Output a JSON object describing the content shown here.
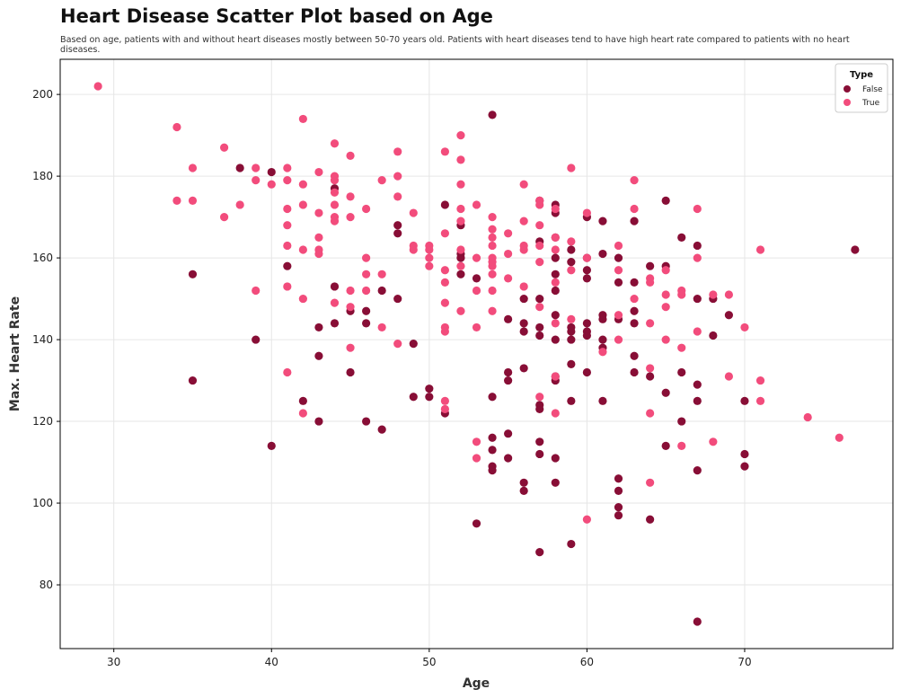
{
  "chart_data": {
    "type": "scatter",
    "title": "Heart Disease Scatter Plot based on Age",
    "subtitle": "Based on age, patients with and without heart diseases mostly between 50-70 years old. Patients with heart diseases tend to have high heart rate compared to patients with no heart diseases.",
    "xlabel": "Age",
    "ylabel": "Max. Heart Rate",
    "xlim": [
      26.6,
      79.4
    ],
    "ylim": [
      64.4,
      208.6
    ],
    "xticks": [
      30,
      40,
      50,
      60,
      70
    ],
    "yticks": [
      80,
      100,
      120,
      140,
      160,
      180,
      200
    ],
    "grid": true,
    "legend": {
      "title": "Type",
      "placement": "top-right"
    },
    "series": [
      {
        "name": "False",
        "color": "#880e36",
        "points": [
          [
            35,
            156
          ],
          [
            35,
            130
          ],
          [
            38,
            182
          ],
          [
            39,
            140
          ],
          [
            40,
            181
          ],
          [
            40,
            114
          ],
          [
            41,
            158
          ],
          [
            42,
            125
          ],
          [
            43,
            143
          ],
          [
            43,
            136
          ],
          [
            43,
            120
          ],
          [
            44,
            177
          ],
          [
            44,
            153
          ],
          [
            44,
            144
          ],
          [
            45,
            147
          ],
          [
            45,
            132
          ],
          [
            46,
            147
          ],
          [
            46,
            144
          ],
          [
            46,
            120
          ],
          [
            47,
            152
          ],
          [
            47,
            118
          ],
          [
            48,
            168
          ],
          [
            48,
            166
          ],
          [
            48,
            150
          ],
          [
            49,
            139
          ],
          [
            49,
            126
          ],
          [
            50,
            128
          ],
          [
            50,
            126
          ],
          [
            51,
            173
          ],
          [
            51,
            122
          ],
          [
            52,
            168
          ],
          [
            52,
            161
          ],
          [
            52,
            160
          ],
          [
            52,
            156
          ],
          [
            53,
            155
          ],
          [
            53,
            95
          ],
          [
            54,
            195
          ],
          [
            54,
            126
          ],
          [
            54,
            116
          ],
          [
            54,
            113
          ],
          [
            54,
            109
          ],
          [
            54,
            108
          ],
          [
            55,
            145
          ],
          [
            55,
            132
          ],
          [
            55,
            130
          ],
          [
            55,
            117
          ],
          [
            55,
            111
          ],
          [
            56,
            150
          ],
          [
            56,
            144
          ],
          [
            56,
            142
          ],
          [
            56,
            133
          ],
          [
            56,
            105
          ],
          [
            56,
            103
          ],
          [
            57,
            174
          ],
          [
            57,
            164
          ],
          [
            57,
            150
          ],
          [
            57,
            143
          ],
          [
            57,
            141
          ],
          [
            57,
            124
          ],
          [
            57,
            123
          ],
          [
            57,
            115
          ],
          [
            57,
            112
          ],
          [
            57,
            88
          ],
          [
            58,
            173
          ],
          [
            58,
            171
          ],
          [
            58,
            165
          ],
          [
            58,
            160
          ],
          [
            58,
            156
          ],
          [
            58,
            152
          ],
          [
            58,
            146
          ],
          [
            58,
            140
          ],
          [
            58,
            131
          ],
          [
            58,
            130
          ],
          [
            58,
            111
          ],
          [
            58,
            105
          ],
          [
            59,
            162
          ],
          [
            59,
            159
          ],
          [
            59,
            143
          ],
          [
            59,
            142
          ],
          [
            59,
            140
          ],
          [
            59,
            134
          ],
          [
            59,
            125
          ],
          [
            59,
            90
          ],
          [
            60,
            170
          ],
          [
            60,
            160
          ],
          [
            60,
            157
          ],
          [
            60,
            155
          ],
          [
            60,
            144
          ],
          [
            60,
            142
          ],
          [
            60,
            141
          ],
          [
            60,
            132
          ],
          [
            61,
            169
          ],
          [
            61,
            161
          ],
          [
            61,
            146
          ],
          [
            61,
            145
          ],
          [
            61,
            140
          ],
          [
            61,
            138
          ],
          [
            61,
            125
          ],
          [
            62,
            160
          ],
          [
            62,
            154
          ],
          [
            62,
            145
          ],
          [
            62,
            106
          ],
          [
            62,
            103
          ],
          [
            62,
            99
          ],
          [
            62,
            97
          ],
          [
            63,
            169
          ],
          [
            63,
            154
          ],
          [
            63,
            147
          ],
          [
            63,
            144
          ],
          [
            63,
            136
          ],
          [
            63,
            132
          ],
          [
            64,
            158
          ],
          [
            64,
            131
          ],
          [
            64,
            96
          ],
          [
            65,
            174
          ],
          [
            65,
            158
          ],
          [
            65,
            127
          ],
          [
            65,
            114
          ],
          [
            66,
            165
          ],
          [
            66,
            132
          ],
          [
            66,
            120
          ],
          [
            67,
            163
          ],
          [
            67,
            150
          ],
          [
            67,
            129
          ],
          [
            67,
            125
          ],
          [
            67,
            108
          ],
          [
            67,
            71
          ],
          [
            68,
            150
          ],
          [
            68,
            141
          ],
          [
            69,
            146
          ],
          [
            70,
            125
          ],
          [
            70,
            112
          ],
          [
            70,
            109
          ],
          [
            77,
            162
          ]
        ]
      },
      {
        "name": "True",
        "color": "#f24c7c",
        "points": [
          [
            29,
            202
          ],
          [
            34,
            192
          ],
          [
            34,
            174
          ],
          [
            35,
            182
          ],
          [
            35,
            174
          ],
          [
            37,
            187
          ],
          [
            37,
            170
          ],
          [
            38,
            173
          ],
          [
            39,
            182
          ],
          [
            39,
            179
          ],
          [
            39,
            152
          ],
          [
            40,
            178
          ],
          [
            41,
            182
          ],
          [
            41,
            179
          ],
          [
            41,
            172
          ],
          [
            41,
            168
          ],
          [
            41,
            163
          ],
          [
            41,
            153
          ],
          [
            41,
            132
          ],
          [
            42,
            194
          ],
          [
            42,
            178
          ],
          [
            42,
            173
          ],
          [
            42,
            162
          ],
          [
            42,
            150
          ],
          [
            42,
            122
          ],
          [
            43,
            181
          ],
          [
            43,
            171
          ],
          [
            43,
            165
          ],
          [
            43,
            162
          ],
          [
            43,
            161
          ],
          [
            44,
            188
          ],
          [
            44,
            180
          ],
          [
            44,
            179
          ],
          [
            44,
            176
          ],
          [
            44,
            173
          ],
          [
            44,
            170
          ],
          [
            44,
            169
          ],
          [
            44,
            149
          ],
          [
            45,
            185
          ],
          [
            45,
            175
          ],
          [
            45,
            170
          ],
          [
            45,
            152
          ],
          [
            45,
            148
          ],
          [
            45,
            138
          ],
          [
            46,
            172
          ],
          [
            46,
            160
          ],
          [
            46,
            156
          ],
          [
            46,
            152
          ],
          [
            47,
            179
          ],
          [
            47,
            156
          ],
          [
            47,
            143
          ],
          [
            48,
            186
          ],
          [
            48,
            180
          ],
          [
            48,
            175
          ],
          [
            48,
            139
          ],
          [
            49,
            171
          ],
          [
            49,
            163
          ],
          [
            49,
            162
          ],
          [
            50,
            163
          ],
          [
            50,
            162
          ],
          [
            50,
            160
          ],
          [
            50,
            158
          ],
          [
            51,
            186
          ],
          [
            51,
            166
          ],
          [
            51,
            157
          ],
          [
            51,
            154
          ],
          [
            51,
            149
          ],
          [
            51,
            143
          ],
          [
            51,
            142
          ],
          [
            51,
            125
          ],
          [
            51,
            123
          ],
          [
            52,
            190
          ],
          [
            52,
            184
          ],
          [
            52,
            178
          ],
          [
            52,
            172
          ],
          [
            52,
            169
          ],
          [
            52,
            162
          ],
          [
            52,
            158
          ],
          [
            52,
            147
          ],
          [
            53,
            173
          ],
          [
            53,
            160
          ],
          [
            53,
            152
          ],
          [
            53,
            143
          ],
          [
            53,
            115
          ],
          [
            53,
            111
          ],
          [
            54,
            170
          ],
          [
            54,
            167
          ],
          [
            54,
            165
          ],
          [
            54,
            163
          ],
          [
            54,
            160
          ],
          [
            54,
            159
          ],
          [
            54,
            158
          ],
          [
            54,
            156
          ],
          [
            54,
            152
          ],
          [
            54,
            147
          ],
          [
            55,
            166
          ],
          [
            55,
            161
          ],
          [
            55,
            155
          ],
          [
            56,
            178
          ],
          [
            56,
            169
          ],
          [
            56,
            163
          ],
          [
            56,
            162
          ],
          [
            56,
            153
          ],
          [
            57,
            174
          ],
          [
            57,
            173
          ],
          [
            57,
            168
          ],
          [
            57,
            163
          ],
          [
            57,
            159
          ],
          [
            57,
            148
          ],
          [
            57,
            126
          ],
          [
            58,
            172
          ],
          [
            58,
            165
          ],
          [
            58,
            162
          ],
          [
            58,
            154
          ],
          [
            58,
            144
          ],
          [
            58,
            131
          ],
          [
            58,
            122
          ],
          [
            59,
            182
          ],
          [
            59,
            164
          ],
          [
            59,
            157
          ],
          [
            59,
            145
          ],
          [
            60,
            171
          ],
          [
            60,
            160
          ],
          [
            60,
            96
          ],
          [
            61,
            137
          ],
          [
            62,
            163
          ],
          [
            62,
            157
          ],
          [
            62,
            146
          ],
          [
            62,
            140
          ],
          [
            63,
            179
          ],
          [
            63,
            172
          ],
          [
            63,
            150
          ],
          [
            64,
            155
          ],
          [
            64,
            154
          ],
          [
            64,
            144
          ],
          [
            64,
            133
          ],
          [
            64,
            122
          ],
          [
            64,
            105
          ],
          [
            65,
            157
          ],
          [
            65,
            151
          ],
          [
            65,
            148
          ],
          [
            65,
            140
          ],
          [
            66,
            152
          ],
          [
            66,
            151
          ],
          [
            66,
            138
          ],
          [
            66,
            114
          ],
          [
            67,
            172
          ],
          [
            67,
            160
          ],
          [
            67,
            142
          ],
          [
            68,
            151
          ],
          [
            68,
            115
          ],
          [
            69,
            151
          ],
          [
            69,
            131
          ],
          [
            70,
            143
          ],
          [
            71,
            162
          ],
          [
            71,
            130
          ],
          [
            71,
            125
          ],
          [
            74,
            121
          ],
          [
            76,
            116
          ]
        ]
      }
    ]
  }
}
